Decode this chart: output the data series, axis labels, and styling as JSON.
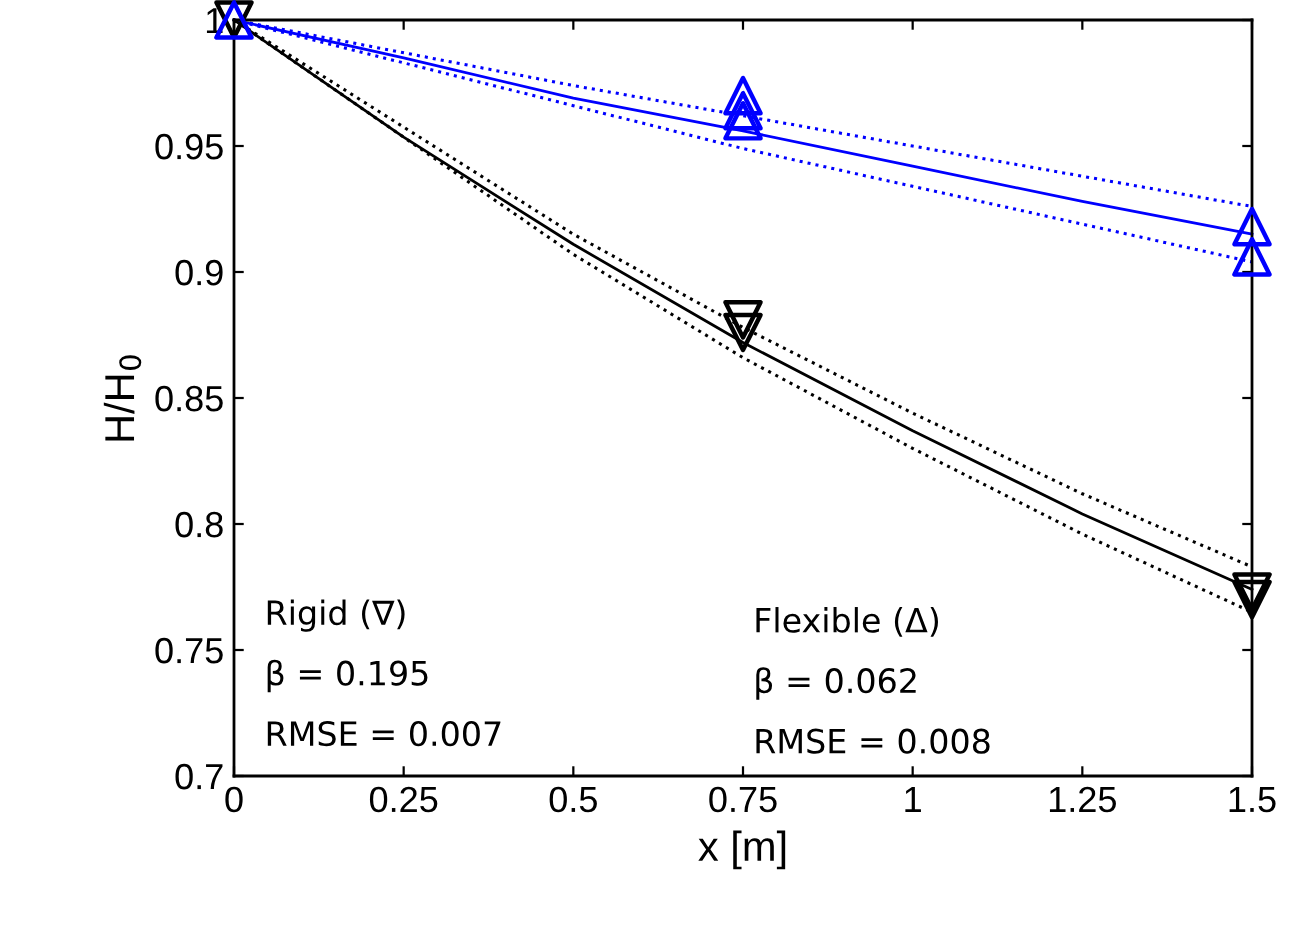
{
  "chart_data": {
    "type": "scatter",
    "xlabel": "x [m]",
    "ylabel": "H/H$_{0}$",
    "xlim": [
      0,
      1.5
    ],
    "ylim": [
      0.7,
      1
    ],
    "xticks": [
      0,
      0.25,
      0.5,
      0.75,
      1,
      1.25,
      1.5
    ],
    "yticks": [
      0.7,
      0.75,
      0.8,
      0.85,
      0.9,
      0.95,
      1
    ],
    "grid": false,
    "series": [
      {
        "type": "line",
        "color": "#0000ff",
        "line_style": "dotted",
        "marker": "none",
        "x": [
          0,
          0.5,
          0.75,
          1,
          1.5
        ],
        "values": [
          1,
          0.974,
          0.962,
          0.95,
          0.926
        ]
      },
      {
        "type": "line",
        "color": "#0000ff",
        "line_style": "dotted",
        "marker": "none",
        "x": [
          0,
          0.5,
          0.75,
          1,
          1.5
        ],
        "values": [
          1,
          0.966,
          0.949,
          0.934,
          0.904
        ]
      },
      {
        "type": "line",
        "color": "#0000ff",
        "line_style": "solid",
        "marker": "none",
        "x": [
          0,
          0.25,
          0.5,
          0.75,
          1,
          1.25,
          1.5
        ],
        "values": [
          1,
          0.985,
          0.969,
          0.956,
          0.942,
          0.928,
          0.915
        ]
      },
      {
        "type": "line",
        "color": "#000000",
        "line_style": "dotted",
        "marker": "none",
        "x": [
          0,
          0.5,
          0.75,
          1,
          1.25,
          1.5
        ],
        "values": [
          1,
          0.915,
          0.878,
          0.844,
          0.812,
          0.783
        ]
      },
      {
        "type": "line",
        "color": "#000000",
        "line_style": "dotted",
        "marker": "none",
        "x": [
          0,
          0.5,
          0.75,
          1,
          1.25,
          1.5
        ],
        "values": [
          1,
          0.907,
          0.866,
          0.83,
          0.796,
          0.765
        ]
      },
      {
        "type": "line",
        "color": "#000000",
        "line_style": "solid",
        "marker": "none",
        "x": [
          0,
          0.25,
          0.5,
          0.75,
          1,
          1.25,
          1.5
        ],
        "values": [
          1,
          0.9535,
          0.911,
          0.872,
          0.837,
          0.804,
          0.774
        ]
      },
      {
        "color": "#000000",
        "marker": "triangle_down",
        "x": [
          0,
          0.75,
          0.75,
          1.5,
          1.5
        ],
        "values": [
          1,
          0.881,
          0.876,
          0.773,
          0.77
        ]
      },
      {
        "color": "#0000ff",
        "marker": "triangle",
        "x": [
          0,
          0.75,
          0.75,
          0.75,
          1.5,
          1.5
        ],
        "values": [
          1,
          0.97,
          0.964,
          0.96,
          0.918,
          0.906
        ]
      }
    ],
    "annotations": [
      "Rigid (∇)",
      "β = 0.195",
      "RMSE = 0.007",
      "Flexible (Δ)",
      "β = 0.062",
      "RMSE = 0.008"
    ]
  }
}
